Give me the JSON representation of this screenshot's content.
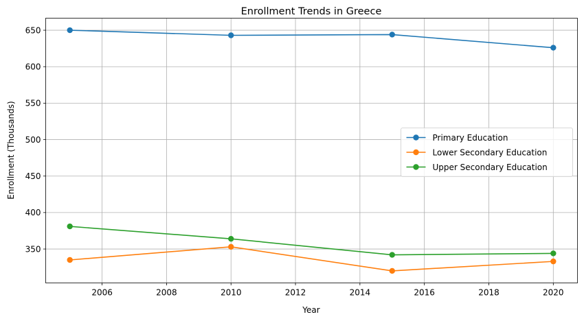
{
  "chart_data": {
    "type": "line",
    "title": "Enrollment Trends in Greece",
    "xlabel": "Year",
    "ylabel": "Enrollment (Thousands)",
    "x": [
      2005,
      2010,
      2015,
      2020
    ],
    "xlim": [
      2004.25,
      2020.75
    ],
    "ylim": [
      303.5,
      666.5
    ],
    "xticks": [
      2006,
      2008,
      2010,
      2012,
      2014,
      2016,
      2018,
      2020
    ],
    "yticks": [
      350,
      400,
      450,
      500,
      550,
      600,
      650
    ],
    "grid": true,
    "legend_position": "center-right",
    "series": [
      {
        "name": "Primary Education",
        "color": "#1f77b4",
        "values": [
          650,
          643,
          644,
          626
        ]
      },
      {
        "name": "Lower Secondary Education",
        "color": "#ff7f0e",
        "values": [
          335,
          353,
          320,
          333
        ]
      },
      {
        "name": "Upper Secondary Education",
        "color": "#2ca02c",
        "values": [
          381,
          364,
          342,
          344
        ]
      }
    ]
  }
}
